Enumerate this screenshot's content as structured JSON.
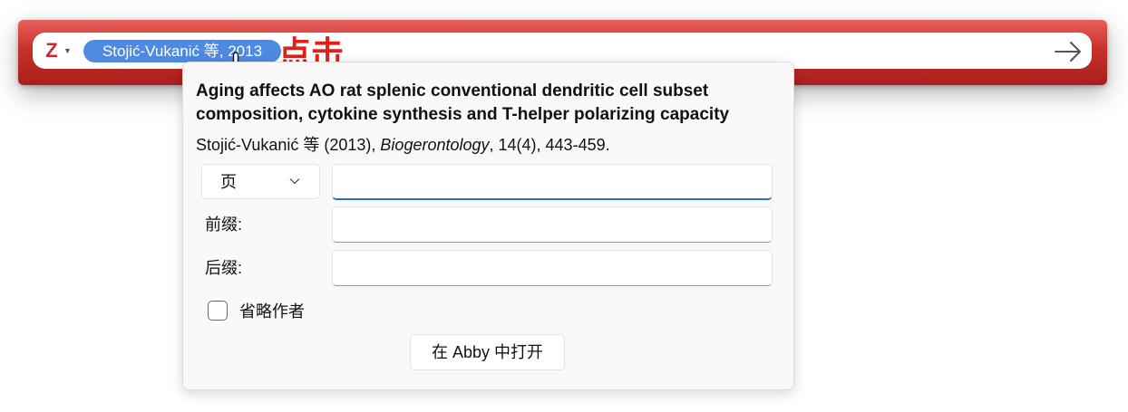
{
  "toolbar": {
    "logo_letter": "Z",
    "citation_bubble": "Stojić-Vukanić 等, 2013",
    "annotation": "点击",
    "accent_color": "#c8302c",
    "bubble_color": "#4f8ae0",
    "icons": [
      "zotero-logo-icon",
      "chevron-down-icon",
      "hand-cursor-icon",
      "arrow-right-icon"
    ]
  },
  "popup": {
    "title": "Aging affects AO rat splenic conventional dendritic cell subset composition, cytokine synthesis and T-helper polarizing capacity",
    "citation": {
      "authors_year": "Stojić-Vukanić 等 (2013), ",
      "journal": "Biogerontology",
      "details": ", 14(4), 443-459."
    },
    "locator": {
      "selected": "页",
      "value": "",
      "focus_color": "#2f6bd0"
    },
    "prefix": {
      "label": "前缀:",
      "value": ""
    },
    "suffix": {
      "label": "后缀:",
      "value": ""
    },
    "omit_author": {
      "label": "省略作者",
      "checked": false
    },
    "open_button": "在 Abby 中打开"
  }
}
